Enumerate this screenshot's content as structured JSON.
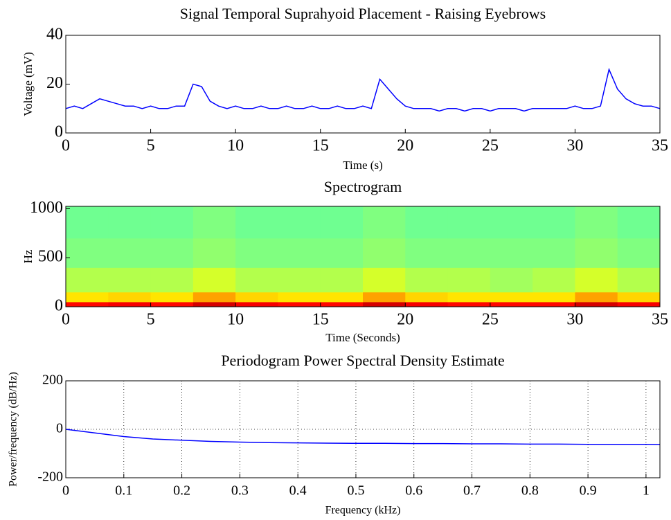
{
  "chart_data": [
    {
      "type": "line",
      "title": "Signal Temporal Suprahyoid Placement - Raising Eyebrows",
      "xlabel": "Time (s)",
      "ylabel": "Voltage (mV)",
      "color": "#0000ff",
      "x": [
        0,
        0.5,
        1,
        1.5,
        2,
        2.5,
        3,
        3.5,
        4,
        4.5,
        5,
        5.5,
        6,
        6.5,
        7,
        7.5,
        8,
        8.5,
        9,
        9.5,
        10,
        10.5,
        11,
        11.5,
        12,
        12.5,
        13,
        13.5,
        14,
        14.5,
        15,
        15.5,
        16,
        16.5,
        17,
        17.5,
        18,
        18.5,
        19,
        19.5,
        20,
        20.5,
        21,
        21.5,
        22,
        22.5,
        23,
        23.5,
        24,
        24.5,
        25,
        25.5,
        26,
        26.5,
        27,
        27.5,
        28,
        28.5,
        29,
        29.5,
        30,
        30.5,
        31,
        31.5,
        32,
        32.5,
        33,
        33.5,
        34,
        34.5,
        35
      ],
      "values": [
        10,
        11,
        10,
        12,
        14,
        13,
        12,
        11,
        11,
        10,
        11,
        10,
        10,
        11,
        11,
        20,
        19,
        13,
        11,
        10,
        11,
        10,
        10,
        11,
        10,
        10,
        11,
        10,
        10,
        11,
        10,
        10,
        11,
        10,
        10,
        11,
        10,
        22,
        18,
        14,
        11,
        10,
        10,
        10,
        9,
        10,
        10,
        9,
        10,
        10,
        9,
        10,
        10,
        10,
        9,
        10,
        10,
        10,
        10,
        10,
        11,
        10,
        10,
        11,
        26,
        18,
        14,
        12,
        11,
        11,
        10
      ],
      "xlim": [
        0,
        35
      ],
      "xticks": [
        0,
        5,
        10,
        15,
        20,
        25,
        30,
        35
      ],
      "ylim": [
        0,
        40
      ],
      "yticks": [
        0,
        20,
        40
      ],
      "grid": false
    },
    {
      "type": "heatmap",
      "title": "Spectrogram",
      "xlabel": "Time (Seconds)",
      "ylabel": "Hz",
      "colormap": "jet",
      "clim": [
        -60,
        0
      ],
      "x_edges": [
        0,
        2.5,
        5,
        7.5,
        10,
        12.5,
        15,
        17.5,
        20,
        22.5,
        25,
        27.5,
        30,
        32.5,
        35
      ],
      "y_edges": [
        0,
        50,
        150,
        400,
        700,
        1024
      ],
      "values": [
        [
          -8,
          -7,
          -8,
          -5,
          -7,
          -8,
          -8,
          -5,
          -7,
          -8,
          -8,
          -8,
          -5,
          -7
        ],
        [
          -21,
          -20,
          -21,
          -17,
          -20,
          -21,
          -21,
          -17,
          -20,
          -21,
          -21,
          -21,
          -17,
          -20
        ],
        [
          -27,
          -27,
          -27,
          -25,
          -27,
          -27,
          -27,
          -25,
          -27,
          -27,
          -28,
          -27,
          -25,
          -27
        ],
        [
          -30,
          -30,
          -30,
          -29,
          -30,
          -30,
          -30,
          -29,
          -30,
          -30,
          -30,
          -30,
          -29,
          -30
        ],
        [
          -31,
          -31,
          -31,
          -30,
          -31,
          -31,
          -31,
          -30,
          -31,
          -31,
          -31,
          -31,
          -30,
          -31
        ]
      ],
      "xlim": [
        0,
        35
      ],
      "xticks": [
        0,
        5,
        10,
        15,
        20,
        25,
        30,
        35
      ],
      "ylim": [
        0,
        1024
      ],
      "yticks": [
        0,
        500,
        1000
      ],
      "grid": false
    },
    {
      "type": "line",
      "title": "Periodogram Power Spectral Density Estimate",
      "xlabel": "Frequency (kHz)",
      "ylabel": "Power/frequency (dB/Hz)",
      "color": "#0000ff",
      "x": [
        0,
        0.05,
        0.1,
        0.15,
        0.2,
        0.25,
        0.3,
        0.35,
        0.4,
        0.45,
        0.5,
        0.55,
        0.6,
        0.65,
        0.7,
        0.75,
        0.8,
        0.85,
        0.9,
        0.95,
        1,
        1.024
      ],
      "values": [
        0,
        -15,
        -30,
        -40,
        -45,
        -50,
        -53,
        -55,
        -56,
        -57,
        -58,
        -58,
        -59,
        -59,
        -60,
        -60,
        -61,
        -61,
        -62,
        -62,
        -62,
        -63
      ],
      "xlim": [
        0,
        1.024
      ],
      "xticks": [
        0,
        0.1,
        0.2,
        0.3,
        0.4,
        0.5,
        0.6,
        0.7,
        0.8,
        0.9,
        1
      ],
      "ylim": [
        -200,
        200
      ],
      "yticks": [
        -200,
        0,
        200
      ],
      "grid": true
    }
  ]
}
